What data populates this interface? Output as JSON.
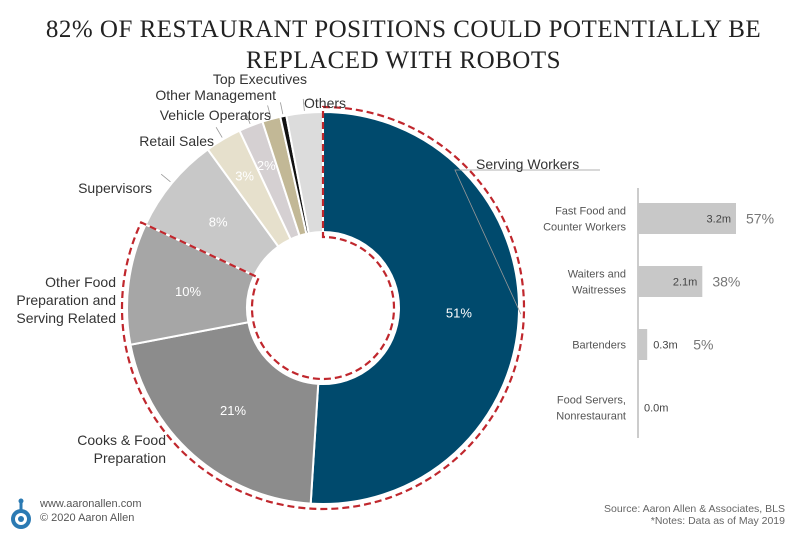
{
  "title_line1": "82% OF RESTAURANT POSITIONS COULD POTENTIALLY BE",
  "title_line2": "REPLACED WITH ROBOTS",
  "chart_data": [
    {
      "type": "pie",
      "variant": "donut",
      "categories": [
        "Serving Workers",
        "Cooks & Food Preparation",
        "Other Food Preparation and Serving Related",
        "Supervisors",
        "Retail Sales",
        "Vehicle Operators",
        "Other Management",
        "Top Executives",
        "Others"
      ],
      "values": [
        51,
        21,
        10,
        8,
        3,
        2,
        1.5,
        0.5,
        3
      ],
      "value_labels": [
        "51%",
        "21%",
        "10%",
        "8%",
        "3%",
        "2%",
        "",
        "",
        ""
      ],
      "colors": [
        "#004a6d",
        "#8c8c8c",
        "#a6a6a6",
        "#c8c8c8",
        "#e6e0cc",
        "#d5d0d2",
        "#c2b896",
        "#111111",
        "#dcdcdc"
      ],
      "highlight": "Serving Workers, Cooks & Food Preparation, Other Food Preparation and Serving Related (82%) outlined with red dashes"
    },
    {
      "type": "bar",
      "orientation": "horizontal",
      "categories": [
        "Fast Food and Counter Workers",
        "Waiters and Waitresses",
        "Bartenders",
        "Food Servers, Nonrestaurant"
      ],
      "values": [
        3.2,
        2.1,
        0.3,
        0.0
      ],
      "value_labels": [
        "3.2m",
        "2.1m",
        "0.3m",
        "0.0m"
      ],
      "percent_labels": [
        "57%",
        "38%",
        "5%",
        ""
      ],
      "bar_color": "#c8c8c8"
    }
  ],
  "footer": {
    "site": "www.aaronallen.com",
    "copyright": "© 2020 Aaron Allen",
    "source": "Source: Aaron Allen & Associates, BLS",
    "notes": "*Notes: Data as of May 2019"
  }
}
